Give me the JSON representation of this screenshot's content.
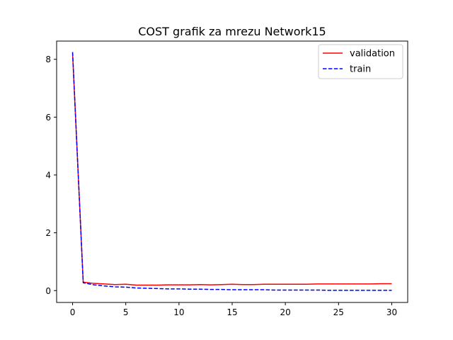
{
  "chart_data": {
    "type": "line",
    "title": "COST grafik za mrezu Network15",
    "xlabel": "",
    "ylabel": "",
    "xlim": [
      -1.5,
      31.5
    ],
    "ylim": [
      -0.41,
      8.63
    ],
    "x_ticks": [
      0,
      5,
      10,
      15,
      20,
      25,
      30
    ],
    "y_ticks": [
      0,
      2,
      4,
      6,
      8
    ],
    "grid": false,
    "legend_position": "top-right",
    "x": [
      0,
      1,
      2,
      3,
      4,
      5,
      6,
      7,
      8,
      9,
      10,
      11,
      12,
      13,
      14,
      15,
      16,
      17,
      18,
      19,
      20,
      21,
      22,
      23,
      24,
      25,
      26,
      27,
      28,
      29,
      30
    ],
    "series": [
      {
        "name": "validation",
        "color": "#ff0000",
        "dash": "solid",
        "values": [
          8.2,
          0.29,
          0.25,
          0.23,
          0.21,
          0.22,
          0.19,
          0.19,
          0.19,
          0.2,
          0.2,
          0.2,
          0.21,
          0.2,
          0.21,
          0.22,
          0.21,
          0.21,
          0.22,
          0.22,
          0.22,
          0.22,
          0.22,
          0.23,
          0.23,
          0.23,
          0.23,
          0.23,
          0.23,
          0.24,
          0.24
        ]
      },
      {
        "name": "train",
        "color": "#0000ff",
        "dash": "dashed",
        "values": [
          8.25,
          0.27,
          0.2,
          0.16,
          0.13,
          0.12,
          0.09,
          0.08,
          0.07,
          0.06,
          0.06,
          0.05,
          0.05,
          0.04,
          0.04,
          0.03,
          0.03,
          0.03,
          0.03,
          0.02,
          0.02,
          0.02,
          0.02,
          0.02,
          0.01,
          0.01,
          0.01,
          0.01,
          0.01,
          0.01,
          0.01
        ]
      }
    ]
  }
}
